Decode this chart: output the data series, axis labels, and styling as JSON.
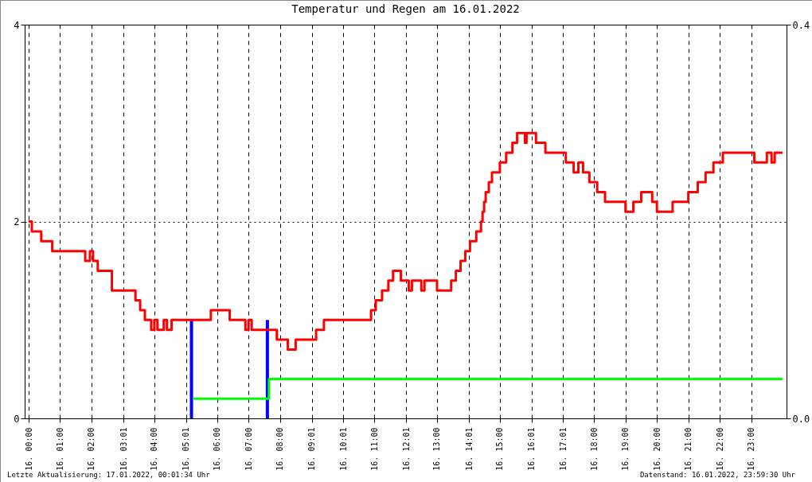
{
  "chart_data": {
    "type": "step",
    "title": "Temperatur und Regen am 16.01.2022",
    "annotations": [
      "Letzte Aktualisierung: 17.01.2022, 00:01:34 Uhr",
      "Datenstand: 16.01.2022, 23:59:30 Uhr"
    ],
    "xlim": [
      "2022-01-16T00:00",
      "2022-01-17T00:00"
    ],
    "xticks": [
      {
        "value": "2022-01-16T00:00",
        "label": "16. 00:00"
      },
      {
        "value": "2022-01-16T01:00",
        "label": "16. 01:00"
      },
      {
        "value": "2022-01-16T02:00",
        "label": "16. 02:00"
      },
      {
        "value": "2022-01-16T03:01",
        "label": "16. 03:01"
      },
      {
        "value": "2022-01-16T04:00",
        "label": "16. 04:00"
      },
      {
        "value": "2022-01-16T05:01",
        "label": "16. 05:01"
      },
      {
        "value": "2022-01-16T06:00",
        "label": "16. 06:00"
      },
      {
        "value": "2022-01-16T07:00",
        "label": "16. 07:00"
      },
      {
        "value": "2022-01-16T08:00",
        "label": "16. 08:00"
      },
      {
        "value": "2022-01-16T09:01",
        "label": "16. 09:01"
      },
      {
        "value": "2022-01-16T10:01",
        "label": "16. 10:01"
      },
      {
        "value": "2022-01-16T11:00",
        "label": "16. 11:00"
      },
      {
        "value": "2022-01-16T12:01",
        "label": "16. 12:01"
      },
      {
        "value": "2022-01-16T13:00",
        "label": "16. 13:00"
      },
      {
        "value": "2022-01-16T14:01",
        "label": "16. 14:01"
      },
      {
        "value": "2022-01-16T15:00",
        "label": "16. 15:00"
      },
      {
        "value": "2022-01-16T16:01",
        "label": "16. 16:01"
      },
      {
        "value": "2022-01-16T17:01",
        "label": "16. 17:01"
      },
      {
        "value": "2022-01-16T18:00",
        "label": "16. 18:00"
      },
      {
        "value": "2022-01-16T19:00",
        "label": "16. 19:00"
      },
      {
        "value": "2022-01-16T20:00",
        "label": "16. 20:00"
      },
      {
        "value": "2022-01-16T21:00",
        "label": "16. 21:00"
      },
      {
        "value": "2022-01-16T22:00",
        "label": "16. 22:00"
      },
      {
        "value": "2022-01-16T23:00",
        "label": "16. 23:00"
      }
    ],
    "ylim": [
      0,
      4
    ],
    "yticks": [
      0,
      2,
      4
    ],
    "y2lim": [
      0,
      0.4
    ],
    "y2ticks": [
      {
        "value": 0,
        "label": "0.0"
      },
      {
        "value": 0.4,
        "label": "0.4"
      }
    ],
    "grid": true,
    "line_style": "solid",
    "series": [
      {
        "color": "#ff0000",
        "x": [
          "2022-01-16T00:00",
          "2022-01-16T00:06",
          "2022-01-16T00:24",
          "2022-01-16T00:45",
          "2022-01-16T01:48",
          "2022-01-16T01:57",
          "2022-01-16T02:03",
          "2022-01-16T02:12",
          "2022-01-16T02:39",
          "2022-01-16T03:24",
          "2022-01-16T03:33",
          "2022-01-16T03:42",
          "2022-01-16T03:54",
          "2022-01-16T04:00",
          "2022-01-16T04:06",
          "2022-01-16T04:18",
          "2022-01-16T04:24",
          "2022-01-16T04:33",
          "2022-01-16T05:48",
          "2022-01-16T06:24",
          "2022-01-16T06:54",
          "2022-01-16T07:00",
          "2022-01-16T07:06",
          "2022-01-16T07:54",
          "2022-01-16T08:15",
          "2022-01-16T08:30",
          "2022-01-16T09:09",
          "2022-01-16T09:24",
          "2022-01-16T10:54",
          "2022-01-16T11:03",
          "2022-01-16T11:15",
          "2022-01-16T11:27",
          "2022-01-16T11:36",
          "2022-01-16T11:51",
          "2022-01-16T12:06",
          "2022-01-16T12:12",
          "2022-01-16T12:30",
          "2022-01-16T12:36",
          "2022-01-16T13:00",
          "2022-01-16T13:27",
          "2022-01-16T13:36",
          "2022-01-16T13:45",
          "2022-01-16T13:54",
          "2022-01-16T14:03",
          "2022-01-16T14:15",
          "2022-01-16T14:24",
          "2022-01-16T14:27",
          "2022-01-16T14:30",
          "2022-01-16T14:33",
          "2022-01-16T14:39",
          "2022-01-16T14:45",
          "2022-01-16T15:00",
          "2022-01-16T15:12",
          "2022-01-16T15:24",
          "2022-01-16T15:33",
          "2022-01-16T15:48",
          "2022-01-16T15:51",
          "2022-01-16T16:09",
          "2022-01-16T16:27",
          "2022-01-16T17:06",
          "2022-01-16T17:21",
          "2022-01-16T17:30",
          "2022-01-16T17:39",
          "2022-01-16T17:51",
          "2022-01-16T18:06",
          "2022-01-16T18:21",
          "2022-01-16T19:00",
          "2022-01-16T19:15",
          "2022-01-16T19:30",
          "2022-01-16T19:51",
          "2022-01-16T20:00",
          "2022-01-16T20:30",
          "2022-01-16T21:00",
          "2022-01-16T21:18",
          "2022-01-16T21:33",
          "2022-01-16T21:48",
          "2022-01-16T22:06",
          "2022-01-16T23:06",
          "2022-01-16T23:30",
          "2022-01-16T23:39",
          "2022-01-16T23:45",
          "2022-01-17T00:00"
        ],
        "values": [
          2.0,
          1.9,
          1.8,
          1.7,
          1.6,
          1.7,
          1.6,
          1.5,
          1.3,
          1.2,
          1.1,
          1.0,
          0.9,
          1.0,
          0.9,
          1.0,
          0.9,
          1.0,
          1.1,
          1.0,
          0.9,
          1.0,
          0.9,
          0.8,
          0.7,
          0.8,
          0.9,
          1.0,
          1.1,
          1.2,
          1.3,
          1.4,
          1.5,
          1.4,
          1.3,
          1.4,
          1.3,
          1.4,
          1.3,
          1.4,
          1.5,
          1.6,
          1.7,
          1.8,
          1.9,
          2.0,
          2.1,
          2.2,
          2.3,
          2.4,
          2.5,
          2.6,
          2.7,
          2.8,
          2.9,
          2.8,
          2.9,
          2.8,
          2.7,
          2.6,
          2.5,
          2.6,
          2.5,
          2.4,
          2.3,
          2.2,
          2.1,
          2.2,
          2.3,
          2.2,
          2.1,
          2.2,
          2.3,
          2.4,
          2.5,
          2.6,
          2.7,
          2.6,
          2.7,
          2.6,
          2.7,
          2.7
        ]
      },
      {
        "type": "bar",
        "axis": "y2",
        "color": "#0000ff",
        "x": [
          "2022-01-16T05:11",
          "2022-01-16T07:36"
        ],
        "values": [
          0.1,
          0.1
        ]
      },
      {
        "axis": "y2",
        "color": "#00ff00",
        "x": [
          "2022-01-16T05:15",
          "2022-01-16T07:39",
          "2022-01-17T00:00"
        ],
        "values": [
          0.02,
          0.04,
          0.04
        ]
      }
    ]
  }
}
